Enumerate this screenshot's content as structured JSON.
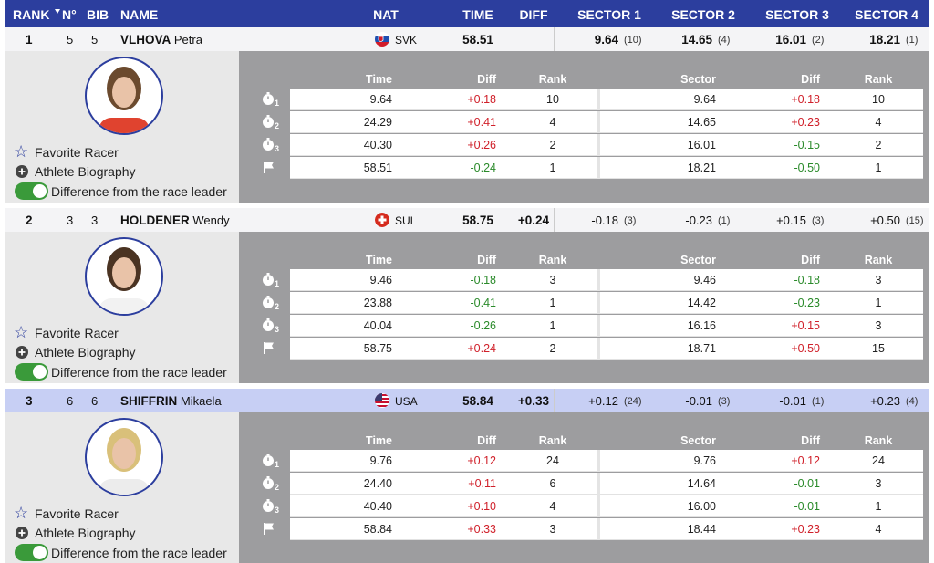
{
  "header": [
    "RANK",
    "N°",
    "BIB",
    "NAME",
    "NAT",
    "TIME",
    "DIFF",
    "SECTOR 1",
    "SECTOR 2",
    "SECTOR 3",
    "SECTOR 4"
  ],
  "panel_labels": {
    "favorite": "Favorite Racer",
    "biography": "Athlete Biography",
    "toggle": "Difference from the race leader"
  },
  "detail_headers": [
    "Time",
    "Diff",
    "Rank",
    "Sector",
    "Diff",
    "Rank"
  ],
  "racers": [
    {
      "rank": "1",
      "number": "5",
      "bib": "5",
      "last_name": "VLHOVA",
      "first_name": "Petra",
      "nat": "SVK",
      "time": "58.51",
      "sectors": [
        {
          "value": "9.64",
          "rank": "(10)"
        },
        {
          "value": "14.65",
          "rank": "(4)"
        },
        {
          "value": "16.01",
          "rank": "(2)"
        },
        {
          "value": "18.21",
          "rank": "(1)"
        }
      ],
      "details": [
        {
          "split": "1",
          "cells": [
            "9.64",
            "+0.18",
            "10",
            "9.64",
            "+0.18",
            "10"
          ]
        },
        {
          "split": "2",
          "cells": [
            "24.29",
            "+0.41",
            "4",
            "14.65",
            "+0.23",
            "4"
          ]
        },
        {
          "split": "3",
          "cells": [
            "40.30",
            "+0.26",
            "2",
            "16.01",
            "-0.15",
            "2"
          ]
        },
        {
          "cells": [
            "58.51",
            "-0.24",
            "1",
            "18.21",
            "-0.50",
            "1"
          ]
        }
      ]
    },
    {
      "rank": "2",
      "number": "3",
      "bib": "3",
      "last_name": "HOLDENER",
      "first_name": "Wendy",
      "nat": "SUI",
      "time": "58.75",
      "diff": "+0.24",
      "sectors": [
        {
          "value": "-0.18",
          "rank": "(3)"
        },
        {
          "value": "-0.23",
          "rank": "(1)"
        },
        {
          "value": "+0.15",
          "rank": "(3)"
        },
        {
          "value": "+0.50",
          "rank": "(15)"
        }
      ],
      "details": [
        {
          "split": "1",
          "cells": [
            "9.46",
            "-0.18",
            "3",
            "9.46",
            "-0.18",
            "3"
          ]
        },
        {
          "split": "2",
          "cells": [
            "23.88",
            "-0.41",
            "1",
            "14.42",
            "-0.23",
            "1"
          ]
        },
        {
          "split": "3",
          "cells": [
            "40.04",
            "-0.26",
            "1",
            "16.16",
            "+0.15",
            "3"
          ]
        },
        {
          "cells": [
            "58.75",
            "+0.24",
            "2",
            "18.71",
            "+0.50",
            "15"
          ]
        }
      ]
    },
    {
      "rank": "3",
      "number": "6",
      "bib": "6",
      "last_name": "SHIFFRIN",
      "first_name": "Mikaela",
      "nat": "USA",
      "time": "58.84",
      "diff": "+0.33",
      "highlighted": true,
      "sectors": [
        {
          "value": "+0.12",
          "rank": "(24)"
        },
        {
          "value": "-0.01",
          "rank": "(3)"
        },
        {
          "value": "-0.01",
          "rank": "(1)"
        },
        {
          "value": "+0.23",
          "rank": "(4)"
        }
      ],
      "details": [
        {
          "split": "1",
          "cells": [
            "9.76",
            "+0.12",
            "24",
            "9.76",
            "+0.12",
            "24"
          ]
        },
        {
          "split": "2",
          "cells": [
            "24.40",
            "+0.11",
            "6",
            "14.64",
            "-0.01",
            "3"
          ]
        },
        {
          "split": "3",
          "cells": [
            "40.40",
            "+0.10",
            "4",
            "16.00",
            "-0.01",
            "1"
          ]
        },
        {
          "cells": [
            "58.84",
            "+0.33",
            "3",
            "18.44",
            "+0.23",
            "4"
          ]
        }
      ]
    }
  ]
}
